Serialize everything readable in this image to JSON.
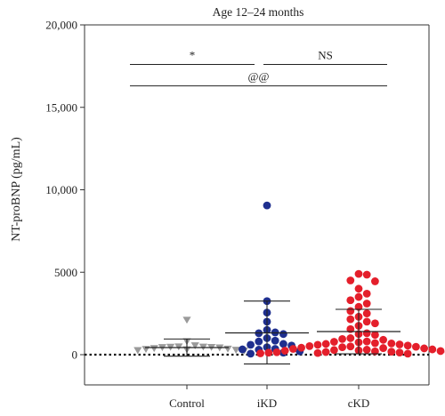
{
  "chart_data": {
    "type": "scatter",
    "title": "Age 12–24 months",
    "ylabel": "NT-proBNP (pg/mL)",
    "xlabel": "",
    "ylim": [
      0,
      20000
    ],
    "ytick_values": [
      0,
      5000,
      10000,
      15000,
      20000
    ],
    "ytick_labels": [
      "0",
      "5000",
      "10,000",
      "15,000",
      "20,000"
    ],
    "categories": [
      "Control",
      "iKD",
      "cKD"
    ],
    "reference_line": {
      "y": 0,
      "style": "dotted"
    },
    "grid": false,
    "groups": [
      {
        "category": "Control",
        "color": "#9a9a9a",
        "marker": "triangle-down",
        "mean": 430,
        "sd_upper": 950,
        "sd_lower": -90,
        "values": [
          2100,
          800,
          550,
          480,
          470,
          460,
          450,
          440,
          420,
          380,
          350,
          330,
          310,
          280,
          260,
          240
        ]
      },
      {
        "category": "iKD",
        "color": "#1f2f8f",
        "marker": "circle",
        "mean": 1320,
        "sd_upper": 3250,
        "sd_lower": -560,
        "values": [
          9050,
          3250,
          2550,
          2000,
          1500,
          1350,
          1300,
          1250,
          1000,
          850,
          800,
          650,
          600,
          550,
          450,
          350,
          320,
          300,
          200,
          120,
          60
        ]
      },
      {
        "category": "cKD",
        "color": "#e41f2b",
        "marker": "circle",
        "mean": 1400,
        "sd_upper": 2750,
        "sd_lower": 50,
        "values": [
          4900,
          4850,
          4500,
          4450,
          4000,
          3700,
          3500,
          3300,
          3100,
          2900,
          2650,
          2500,
          2300,
          2150,
          2000,
          1900,
          1750,
          1550,
          1300,
          1250,
          1200,
          1000,
          950,
          900,
          800,
          780,
          750,
          700,
          680,
          650,
          620,
          600,
          550,
          520,
          500,
          480,
          450,
          420,
          400,
          380,
          350,
          320,
          300,
          280,
          260,
          240,
          220,
          200,
          180,
          160,
          150,
          140,
          130,
          120,
          100,
          90,
          80,
          60
        ]
      }
    ],
    "annotations": [
      {
        "label": "*",
        "from": "Control",
        "to": "iKD",
        "y": 17600
      },
      {
        "label": "NS",
        "from": "iKD",
        "to": "cKD",
        "y": 17600
      },
      {
        "label": "@@",
        "from": "Control",
        "to": "cKD",
        "y": 16300
      }
    ]
  }
}
